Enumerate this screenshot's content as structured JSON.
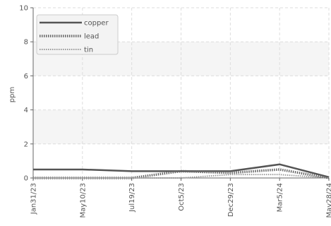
{
  "chart_data": {
    "type": "line",
    "ylabel": "ppm",
    "ylim": [
      0,
      10
    ],
    "yticks": [
      "0",
      "2",
      "4",
      "6",
      "8",
      "10"
    ],
    "x": [
      "Jan31/23",
      "May10/23",
      "Jul19/23",
      "Oct5/23",
      "Dec29/23",
      "Mar5/24",
      "May28/24"
    ],
    "grid": true,
    "legend": "top-left",
    "series": [
      {
        "name": "copper",
        "values": [
          0.5,
          0.5,
          0.4,
          0.4,
          0.4,
          0.8,
          0.05
        ],
        "color": "#555555",
        "style": "solid"
      },
      {
        "name": "lead",
        "values": [
          0.0,
          0.0,
          0.0,
          0.4,
          0.3,
          0.5,
          0.0
        ],
        "color": "#666666",
        "style": "dotted-thick"
      },
      {
        "name": "tin",
        "values": [
          0.0,
          0.0,
          0.0,
          0.0,
          0.2,
          0.2,
          0.0
        ],
        "color": "#999999",
        "style": "dotted-thin"
      }
    ]
  }
}
